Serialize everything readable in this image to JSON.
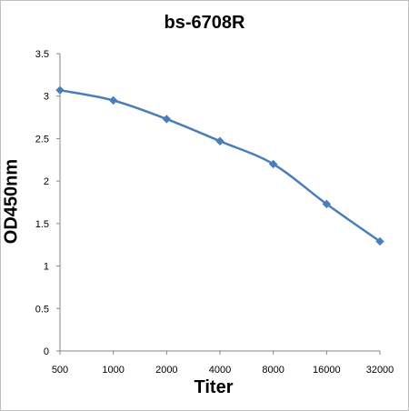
{
  "chart_data": {
    "type": "line",
    "title": "bs-6708R",
    "xlabel": "Titer",
    "ylabel": "OD450nm",
    "categories": [
      "500",
      "1000",
      "2000",
      "4000",
      "8000",
      "16000",
      "32000"
    ],
    "series": [
      {
        "values": [
          3.07,
          2.95,
          2.73,
          2.47,
          2.2,
          1.73,
          1.29
        ]
      }
    ],
    "ylim": [
      0,
      3.5
    ],
    "yticks": [
      "0",
      "0.5",
      "1",
      "1.5",
      "2",
      "2.5",
      "3",
      "3.5"
    ],
    "grid": false,
    "line_color": "#4a7ebb",
    "marker": "diamond"
  }
}
